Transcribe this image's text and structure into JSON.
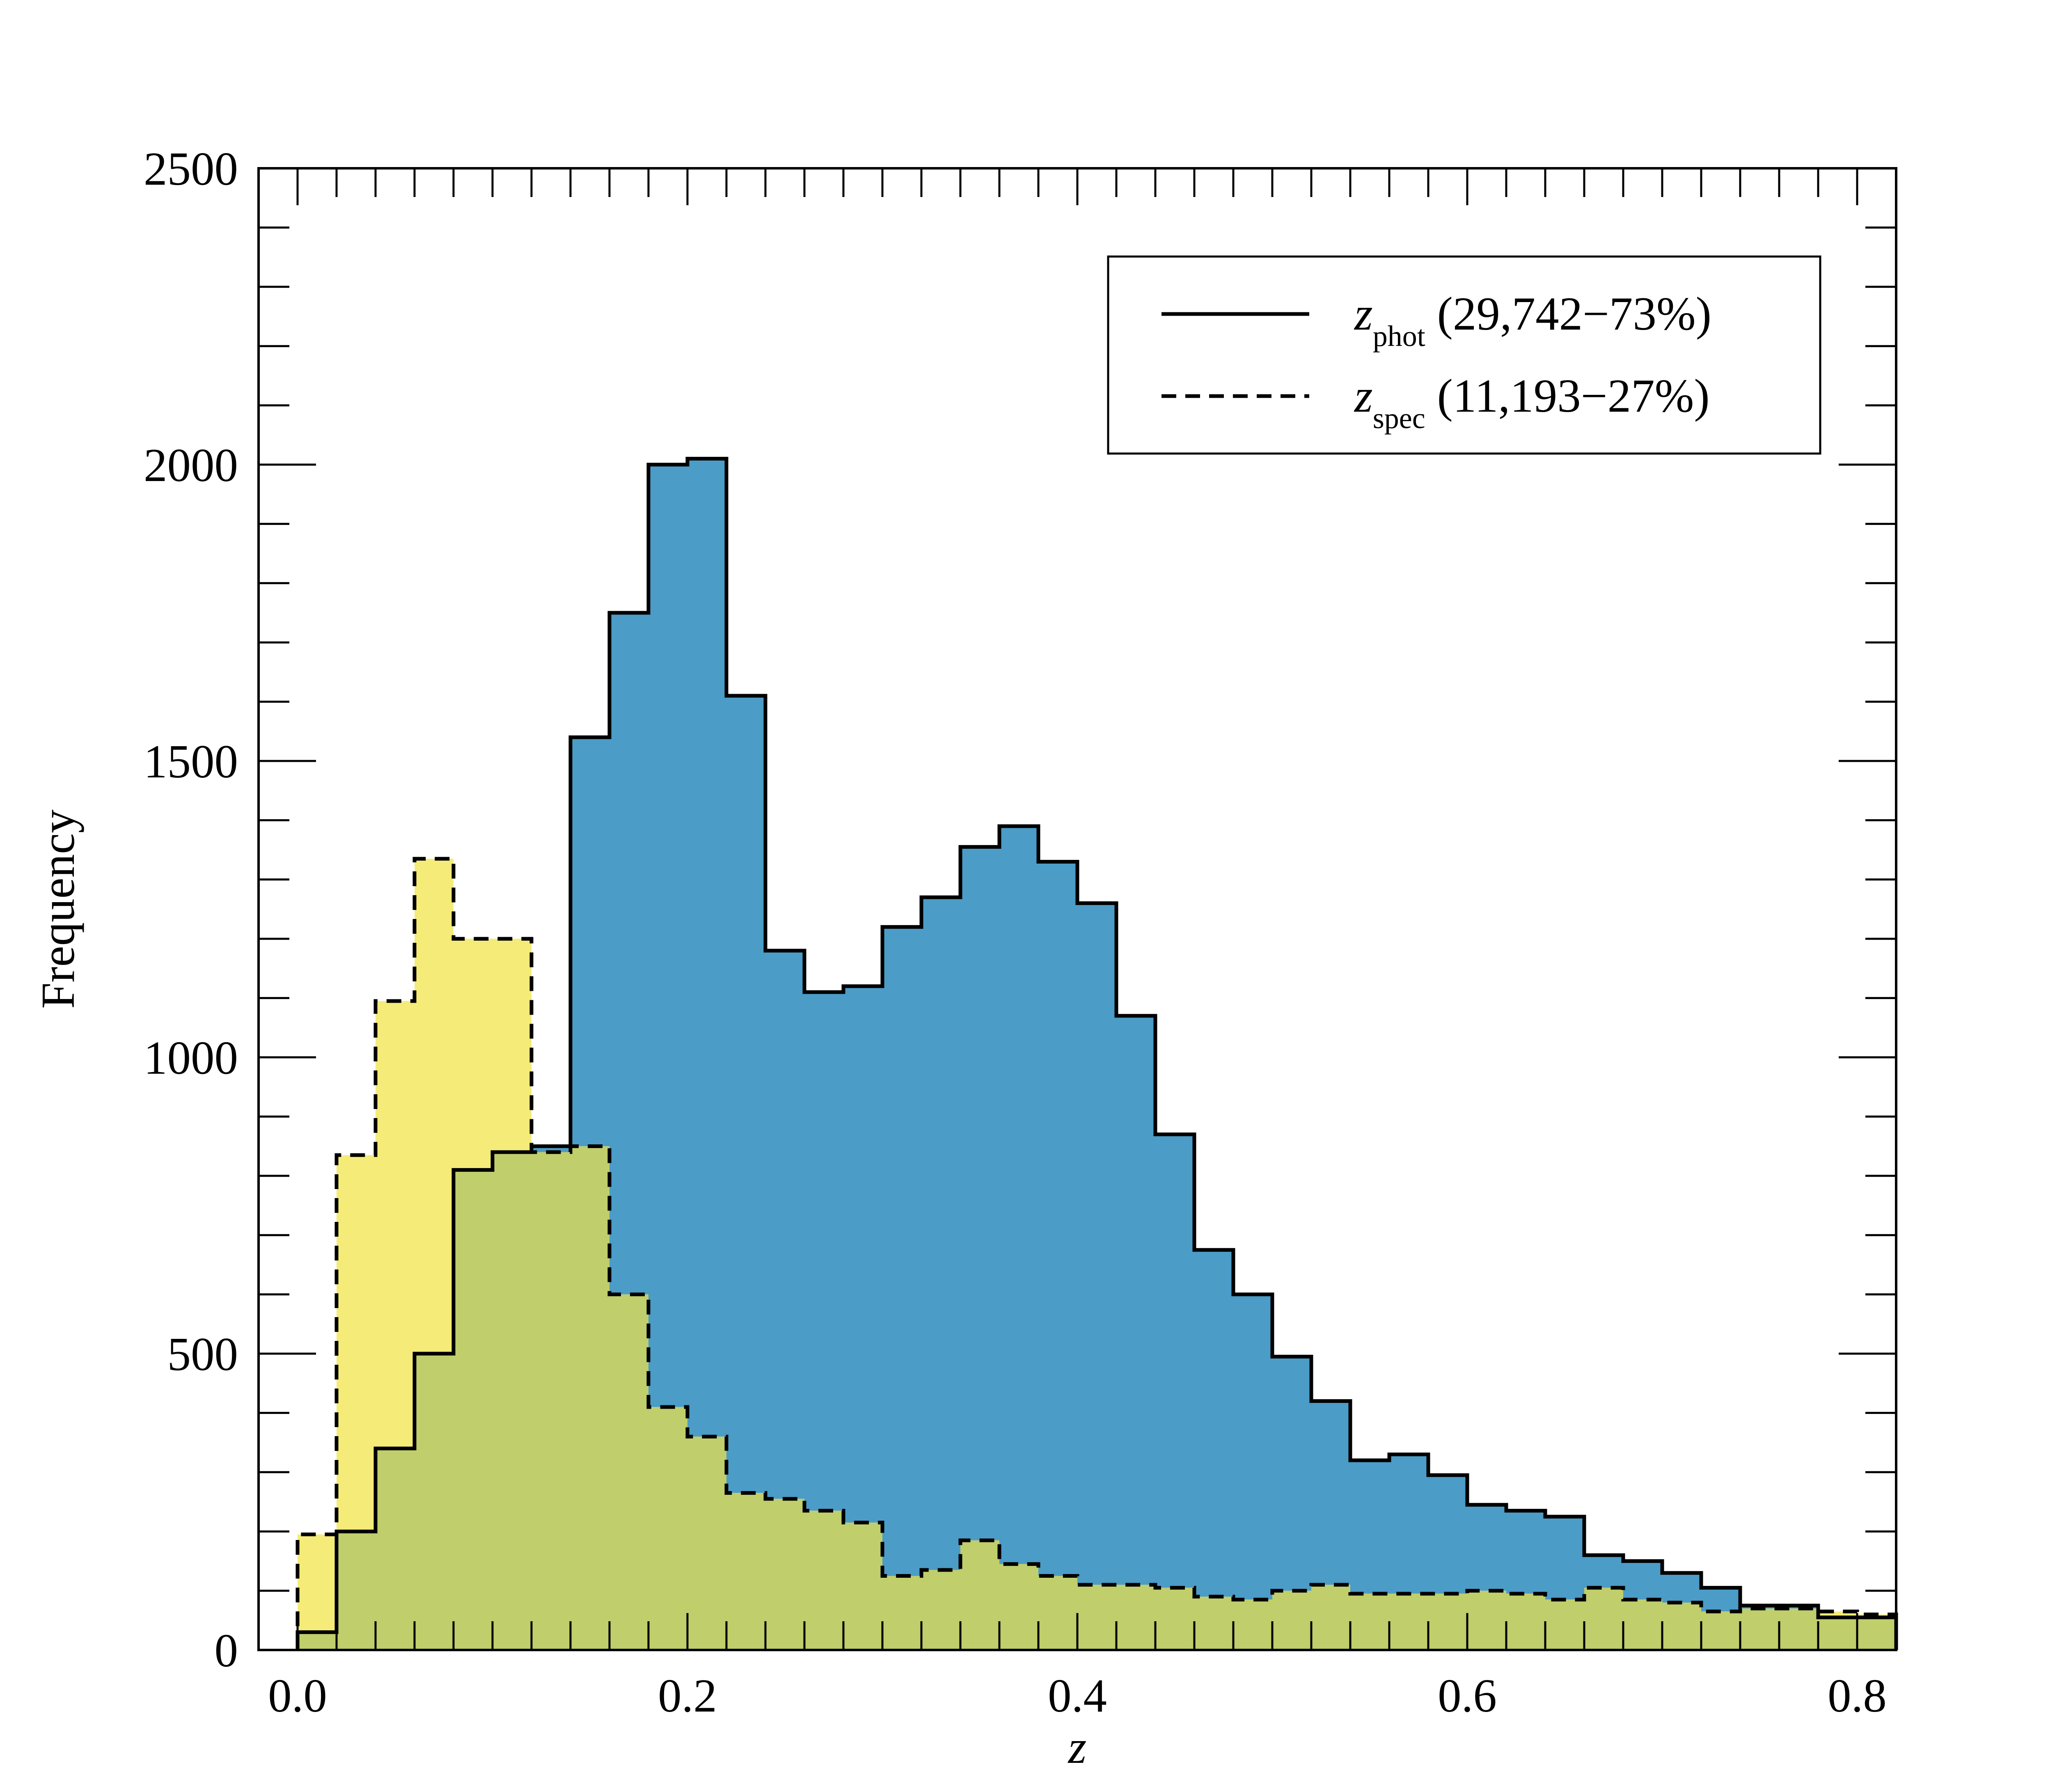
{
  "chart_data": {
    "type": "bar",
    "subtype": "step-histogram",
    "xlabel": "z",
    "ylabel": "Frequency",
    "xlim": [
      -0.02,
      0.82
    ],
    "ylim": [
      0,
      2500
    ],
    "bin_width": 0.02,
    "bin_start": 0.0,
    "xticks": [
      "0.0",
      "0.2",
      "0.4",
      "0.6",
      "0.8"
    ],
    "xtick_values": [
      0.0,
      0.2,
      0.4,
      0.6,
      0.8
    ],
    "yticks": [
      "0",
      "500",
      "1000",
      "1500",
      "2000",
      "2500"
    ],
    "ytick_values": [
      0,
      500,
      1000,
      1500,
      2000,
      2500
    ],
    "legend_position": "top-right",
    "series": [
      {
        "name": "z_phot (29,742−73%)",
        "legend_symbol": "z",
        "legend_sub": "phot",
        "legend_text": " (29,742−73%)",
        "line_style": "solid",
        "fill_color": "#4b9cc7",
        "values": [
          30,
          200,
          340,
          500,
          810,
          840,
          850,
          1540,
          1750,
          2000,
          2010,
          1610,
          1180,
          1110,
          1120,
          1220,
          1270,
          1355,
          1390,
          1330,
          1260,
          1070,
          870,
          675,
          600,
          495,
          420,
          320,
          330,
          295,
          245,
          235,
          225,
          160,
          150,
          130,
          105,
          75,
          75,
          55,
          55
        ]
      },
      {
        "name": "z_spec (11,193−27%)",
        "legend_symbol": "z",
        "legend_sub": "spec",
        "legend_text": " (11,193−27%)",
        "line_style": "dashed",
        "fill_color": "#f5eb78",
        "values": [
          195,
          835,
          1095,
          1335,
          1200,
          1200,
          840,
          850,
          600,
          410,
          360,
          265,
          255,
          235,
          215,
          125,
          135,
          185,
          145,
          125,
          110,
          110,
          105,
          90,
          85,
          100,
          110,
          95,
          95,
          95,
          100,
          95,
          85,
          105,
          85,
          80,
          65,
          70,
          70,
          65,
          60
        ]
      }
    ],
    "overlap_color": "#c0ce6b",
    "grid": false
  }
}
